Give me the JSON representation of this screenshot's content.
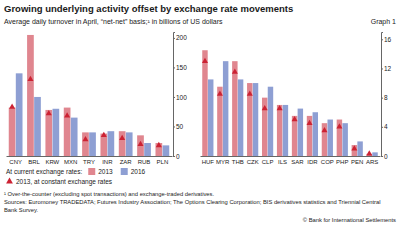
{
  "figure": {
    "title": "Growing underlying activity offset by exchange rate movements",
    "subtitle": "Average daily turnover in April, “net-net” basis;¹ in billions of US dollars",
    "graph_label": "Graph 1",
    "legend_title": "At current exchange rates:",
    "footnote": "¹ Over-the-counter (excluding spot transactions) and exchange-traded derivatives.",
    "sources": "Sources: Euromoney TRADEDATA; Futures Industry Association; The Options Clearing Corporation; BIS derivatives statistics and Triennial Central Bank Survey.",
    "copyright": "© Bank for International Settlements"
  },
  "chart_data": [
    {
      "type": "bar",
      "grid": false,
      "categories": [
        "CNY",
        "BRL",
        "KRW",
        "MXN",
        "TRY",
        "INR",
        "ZAR",
        "RUB",
        "PLN"
      ],
      "ylim": [
        0,
        210
      ],
      "yticks": [
        0,
        50,
        100,
        150,
        200
      ],
      "series": [
        {
          "name": "2013",
          "type": "bar",
          "color": "#e0868f",
          "values": [
            82,
            205,
            78,
            82,
            40,
            38,
            42,
            35,
            22
          ]
        },
        {
          "name": "2016",
          "type": "bar",
          "color": "#8e9fd3",
          "values": [
            140,
            100,
            80,
            65,
            40,
            42,
            40,
            22,
            18
          ]
        },
        {
          "name": "2013, at constant exchange rates",
          "type": "scatter",
          "marker": "triangle",
          "color": "#cc2233",
          "values": [
            83,
            130,
            72,
            68,
            28,
            35,
            30,
            20,
            18
          ]
        }
      ]
    },
    {
      "type": "bar",
      "grid": false,
      "categories": [
        "HUF",
        "MYR",
        "THB",
        "CZK",
        "CLP",
        "ILS",
        "SAR",
        "IDR",
        "COP",
        "PHP",
        "PEN",
        "ARS"
      ],
      "ylim": [
        0,
        17
      ],
      "yticks": [
        0,
        4,
        8,
        12,
        16
      ],
      "series": [
        {
          "type": "bar",
          "color": "#e0868f",
          "values": [
            14.5,
            9.5,
            13,
            10,
            8,
            7,
            5.5,
            5.5,
            4.5,
            5,
            1.5,
            0.3
          ]
        },
        {
          "type": "bar",
          "color": "#8e9fd3",
          "values": [
            10.5,
            13,
            10.5,
            10,
            9.5,
            7,
            6.5,
            6,
            5,
            4.5,
            2,
            0.5
          ]
        },
        {
          "type": "scatter",
          "marker": "triangle",
          "color": "#cc2233",
          "values": [
            13,
            8.5,
            11.5,
            8.5,
            6.5,
            6.5,
            5,
            4.5,
            3.5,
            4,
            1,
            0.3
          ]
        }
      ]
    }
  ]
}
